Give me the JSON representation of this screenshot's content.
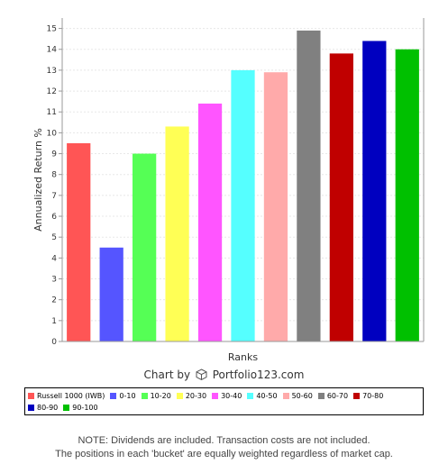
{
  "chart_data": {
    "type": "bar",
    "categories": [
      "Russell 1000 (IWB)",
      "0-10",
      "10-20",
      "20-30",
      "30-40",
      "40-50",
      "50-60",
      "60-70",
      "70-80",
      "80-90",
      "90-100"
    ],
    "values": [
      9.5,
      4.5,
      9.0,
      10.3,
      11.4,
      13.0,
      12.9,
      14.9,
      13.8,
      14.4,
      14.0
    ],
    "colors": [
      "#ff5555",
      "#5555ff",
      "#55ff55",
      "#ffff55",
      "#ff55ff",
      "#55ffff",
      "#ffaaaa",
      "#808080",
      "#c00000",
      "#0000c0",
      "#00c000"
    ],
    "xlabel": "Ranks",
    "ylabel": "Annualized Return %",
    "ylim": [
      0,
      15.5
    ],
    "yticks": [
      0,
      1,
      2,
      3,
      4,
      5,
      6,
      7,
      8,
      9,
      10,
      11,
      12,
      13,
      14,
      15
    ],
    "grid": true,
    "legend_position": "bottom"
  },
  "credit": {
    "prefix": "Chart by",
    "brand": "Portfolio123.com",
    "icon": "cube-icon"
  },
  "note": {
    "line1": "NOTE: Dividends are included. Transaction costs are not included.",
    "line2": "The positions in each 'bucket' are equally weighted regardless of market cap."
  }
}
